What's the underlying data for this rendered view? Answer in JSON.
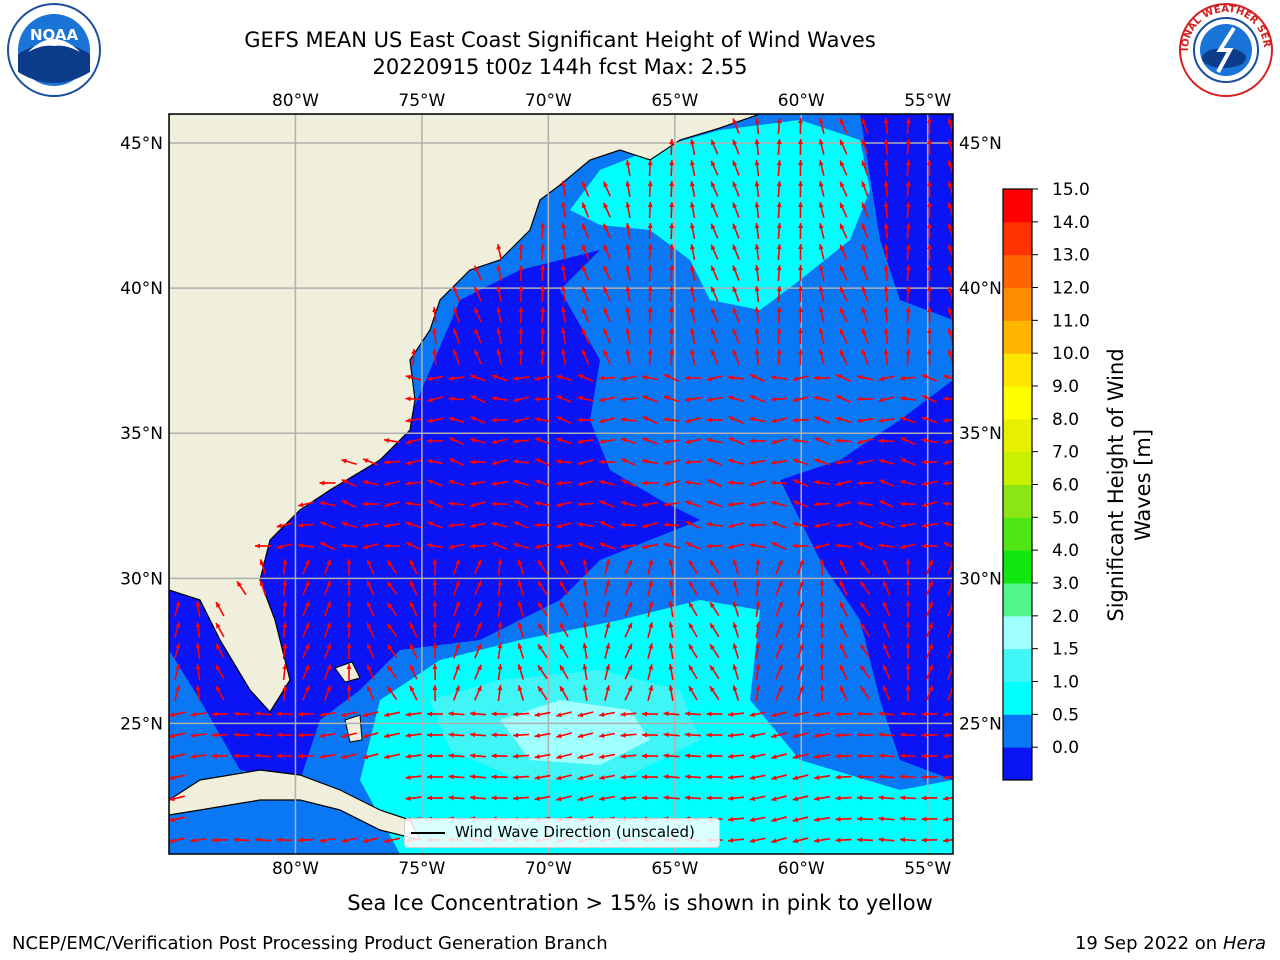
{
  "title_line1": "GEFS MEAN US East Coast Significant Height of Wind Waves",
  "title_line2": "20220915 t00z 144h fcst   Max: 2.55",
  "logos": {
    "left": {
      "icon": "noaa-logo",
      "text": "NOAA"
    },
    "right": {
      "icon": "national-weather-service-logo",
      "text": "NATIONAL WEATHER SERVICE"
    }
  },
  "axes": {
    "lon_ticks": [
      "80°W",
      "75°W",
      "70°W",
      "65°W",
      "60°W",
      "55°W"
    ],
    "lat_ticks": [
      "45°N",
      "40°N",
      "35°N",
      "30°N",
      "25°N"
    ]
  },
  "colorbar": {
    "label_line1": "Significant Height of Wind",
    "label_line2": "Waves [m]",
    "ticks": [
      "15.0",
      "14.0",
      "13.0",
      "12.0",
      "11.0",
      "10.0",
      "9.0",
      "8.0",
      "7.0",
      "6.0",
      "5.0",
      "4.0",
      "3.0",
      "2.0",
      "1.5",
      "1.0",
      "0.5",
      "0.0"
    ],
    "colors_bottom_to_top": [
      "#0a14f5",
      "#0a78f5",
      "#00ffff",
      "#3ff5f5",
      "#a0ffff",
      "#50f58c",
      "#10e810",
      "#50e614",
      "#8ce614",
      "#c8f000",
      "#e6f000",
      "#ffff00",
      "#ffe600",
      "#ffb400",
      "#ff8c00",
      "#ff6400",
      "#ff3200",
      "#ff0000"
    ]
  },
  "legend": {
    "label": "Wind Wave Direction (unscaled)"
  },
  "caption": "Sea Ice Concentration > 15% is shown in pink to yellow",
  "footer": {
    "left": "NCEP/EMC/Verification Post Processing Product Generation Branch",
    "date": "19 Sep 2022 on",
    "machine": "Hera"
  },
  "colors": {
    "land": "#efefdb",
    "arrow": "#ff0000",
    "grid": "#b0b0b0"
  }
}
